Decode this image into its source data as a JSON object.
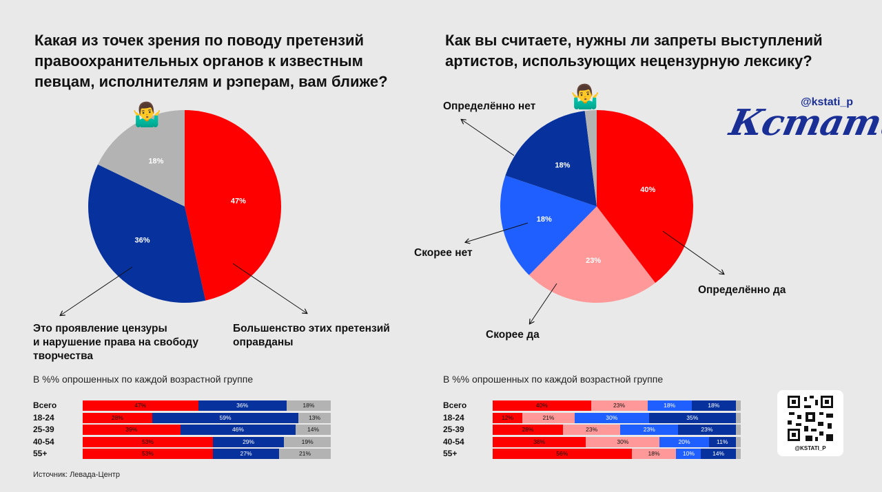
{
  "left": {
    "title": "Какая из точек зрения по поводу претензий правоохранительных органов к известным певцам, исполнителям и рэперам, вам ближе?",
    "callout_left": "Это проявление цензуры\nи нарушение права на свободу\nтворчества",
    "callout_right": "Большенство этих претензий\nоправданы",
    "subtitle": "В %% опрошенных по каждой возрастной группе",
    "source": "Источник: Левада-Центр"
  },
  "right": {
    "title": "Как вы считаете, нужны ли запреты выступлений артистов, использующих нецензурную лексику?",
    "labels": {
      "def_no": "Определённо нет",
      "rather_no": "Скорее нет",
      "rather_yes": "Скорее да",
      "def_yes": "Определённо да"
    },
    "subtitle": "В %% опрошенных по каждой возрастной группе"
  },
  "brand": {
    "handle": "@kstati_p",
    "logo": "Кстати,",
    "qr_handle": "@KSTATI_P"
  },
  "icons": {
    "shrug": "person-shrugging-icon",
    "qr": "qr-code-icon"
  },
  "chart_data": [
    {
      "type": "pie",
      "labels": [
        "Большенство этих претензий оправданы",
        "Это проявление цензуры и нарушение права на свободу творчества",
        ""
      ],
      "values": [
        47,
        36,
        18
      ],
      "value_labels": [
        "47%",
        "36%",
        "18%"
      ],
      "colors": [
        "#ff0000",
        "#07329d",
        "#b3b3b3"
      ]
    },
    {
      "type": "bar",
      "orientation": "horizontal-stacked",
      "categories": [
        "Всего",
        "18-24",
        "25-39",
        "40-54",
        "55+"
      ],
      "series": [
        {
          "values": [
            47,
            28,
            39,
            53,
            53
          ],
          "labels": [
            "47%",
            "28%",
            "39%",
            "53%",
            "53%"
          ],
          "color": "#ff0000"
        },
        {
          "values": [
            36,
            59,
            46,
            29,
            27
          ],
          "labels": [
            "36%",
            "59%",
            "46%",
            "29%",
            "27%"
          ],
          "color": "#07329d"
        },
        {
          "values": [
            18,
            13,
            14,
            19,
            21
          ],
          "labels": [
            "18%",
            "13%",
            "14%",
            "19%",
            "21%"
          ],
          "color": "#b3b3b3"
        }
      ]
    },
    {
      "type": "pie",
      "labels": [
        "Определённо да",
        "Скорее да",
        "Скорее нет",
        "Определённо нет",
        ""
      ],
      "values": [
        40,
        23,
        18,
        18,
        2
      ],
      "value_labels": [
        "40%",
        "23%",
        "18%",
        "18%",
        ""
      ],
      "colors": [
        "#ff0000",
        "#ff9999",
        "#1f5fff",
        "#07329d",
        "#b3b3b3"
      ]
    },
    {
      "type": "bar",
      "orientation": "horizontal-stacked",
      "categories": [
        "Всего",
        "18-24",
        "25-39",
        "40-54",
        "55+"
      ],
      "series": [
        {
          "values": [
            40,
            12,
            28,
            38,
            56
          ],
          "labels": [
            "40%",
            "12%",
            "28%",
            "38%",
            "56%"
          ],
          "color": "#ff0000"
        },
        {
          "values": [
            23,
            21,
            23,
            30,
            18
          ],
          "labels": [
            "23%",
            "21%",
            "23%",
            "30%",
            "18%"
          ],
          "color": "#ff9999"
        },
        {
          "values": [
            18,
            30,
            23,
            20,
            10
          ],
          "labels": [
            "18%",
            "30%",
            "23%",
            "20%",
            "10%"
          ],
          "color": "#1f5fff"
        },
        {
          "values": [
            18,
            35,
            23,
            11,
            14
          ],
          "labels": [
            "18%",
            "35%",
            "23%",
            "11%",
            "14%"
          ],
          "color": "#07329d"
        },
        {
          "values": [
            2,
            2,
            2,
            2,
            2
          ],
          "labels": [
            "",
            "",
            "",
            "",
            ""
          ],
          "color": "#b3b3b3"
        }
      ]
    }
  ]
}
